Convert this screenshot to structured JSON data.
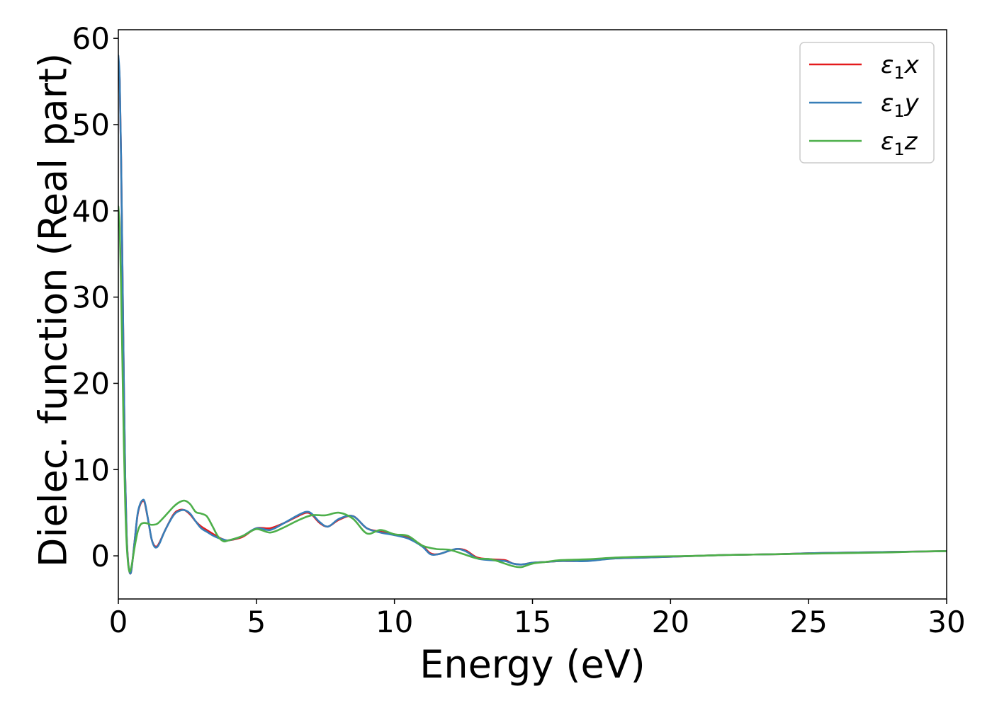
{
  "chart_data": {
    "type": "line",
    "title": "",
    "xlabel": "Energy (eV)",
    "ylabel": "Dielec. function (Real part)",
    "xlim": [
      0,
      30
    ],
    "ylim": [
      -5,
      61
    ],
    "xticks": [
      0,
      5,
      10,
      15,
      20,
      25,
      30
    ],
    "yticks": [
      0,
      10,
      20,
      30,
      40,
      50,
      60
    ],
    "grid": false,
    "legend": "top-right",
    "series": [
      {
        "name": "ε1x",
        "legend_base": "ε",
        "legend_sub": "1",
        "legend_tail": "x",
        "color": "#e41a1c",
        "x": [
          0,
          0.05,
          0.1,
          0.15,
          0.2,
          0.25,
          0.3,
          0.35,
          0.4,
          0.45,
          0.5,
          0.6,
          0.7,
          0.8,
          0.9,
          0.95,
          1.0,
          1.1,
          1.2,
          1.3,
          1.4,
          1.5,
          1.7,
          2.0,
          2.2,
          2.4,
          2.6,
          2.8,
          3.0,
          3.2,
          3.4,
          3.6,
          3.8,
          4.0,
          4.5,
          5.0,
          5.5,
          6.0,
          6.5,
          6.8,
          7.0,
          7.3,
          7.6,
          8.0,
          8.5,
          9.0,
          9.5,
          10.0,
          10.5,
          11.0,
          11.3,
          11.6,
          12.0,
          12.3,
          12.6,
          13.0,
          13.5,
          14.0,
          14.3,
          14.6,
          15.0,
          15.5,
          16.0,
          16.5,
          17.0,
          18.0,
          19.0,
          20.0,
          21.0,
          22.0,
          23.0,
          24.0,
          25.0,
          26.0,
          27.0,
          28.0,
          29.0,
          30.0
        ],
        "values": [
          57.5,
          55.0,
          46.0,
          33.0,
          20.0,
          9.0,
          2.5,
          -0.5,
          -1.8,
          -2.0,
          -1.0,
          2.0,
          4.8,
          6.0,
          6.4,
          6.2,
          5.5,
          3.8,
          2.0,
          1.2,
          1.1,
          1.6,
          3.0,
          4.8,
          5.3,
          5.3,
          4.8,
          4.0,
          3.4,
          3.0,
          2.6,
          2.2,
          1.9,
          1.8,
          2.2,
          3.2,
          3.2,
          3.8,
          4.6,
          5.0,
          4.8,
          3.8,
          3.4,
          4.2,
          4.6,
          3.2,
          2.8,
          2.5,
          2.1,
          1.2,
          0.3,
          0.2,
          0.6,
          0.8,
          0.6,
          -0.2,
          -0.4,
          -0.5,
          -0.9,
          -1.0,
          -0.8,
          -0.7,
          -0.6,
          -0.6,
          -0.5,
          -0.3,
          -0.2,
          -0.1,
          0.0,
          0.1,
          0.15,
          0.2,
          0.3,
          0.35,
          0.4,
          0.45,
          0.5,
          0.55
        ]
      },
      {
        "name": "ε1y",
        "legend_base": "ε",
        "legend_sub": "1",
        "legend_tail": "y",
        "color": "#377eb8",
        "x": [
          0,
          0.05,
          0.1,
          0.15,
          0.2,
          0.25,
          0.3,
          0.35,
          0.4,
          0.45,
          0.5,
          0.6,
          0.7,
          0.8,
          0.9,
          0.95,
          1.0,
          1.1,
          1.2,
          1.3,
          1.4,
          1.5,
          1.7,
          2.0,
          2.2,
          2.4,
          2.6,
          2.8,
          3.0,
          3.2,
          3.4,
          3.6,
          3.8,
          4.0,
          4.5,
          5.0,
          5.5,
          6.0,
          6.5,
          6.8,
          7.0,
          7.3,
          7.6,
          8.0,
          8.5,
          9.0,
          9.5,
          10.0,
          10.5,
          11.0,
          11.3,
          11.6,
          12.0,
          12.3,
          12.6,
          13.0,
          13.5,
          14.0,
          14.3,
          14.6,
          15.0,
          15.5,
          16.0,
          16.5,
          17.0,
          18.0,
          19.0,
          20.0,
          21.0,
          22.0,
          23.0,
          24.0,
          25.0,
          26.0,
          27.0,
          28.0,
          29.0,
          30.0
        ],
        "values": [
          58.0,
          55.2,
          46.0,
          33.0,
          20.0,
          9.0,
          2.4,
          -0.6,
          -1.8,
          -2.0,
          -1.0,
          2.0,
          4.9,
          6.1,
          6.5,
          6.3,
          5.6,
          3.8,
          2.0,
          1.1,
          1.0,
          1.5,
          3.0,
          4.7,
          5.2,
          5.3,
          4.9,
          4.0,
          3.2,
          2.8,
          2.4,
          2.1,
          1.9,
          1.8,
          2.3,
          3.2,
          3.0,
          3.8,
          4.7,
          5.1,
          4.9,
          3.9,
          3.4,
          4.3,
          4.6,
          3.2,
          2.7,
          2.4,
          2.0,
          1.1,
          0.2,
          0.2,
          0.6,
          0.8,
          0.5,
          -0.3,
          -0.5,
          -0.6,
          -0.9,
          -1.0,
          -0.8,
          -0.7,
          -0.6,
          -0.6,
          -0.6,
          -0.3,
          -0.2,
          -0.1,
          0.0,
          0.1,
          0.15,
          0.2,
          0.3,
          0.35,
          0.4,
          0.45,
          0.5,
          0.55
        ]
      },
      {
        "name": "ε1z",
        "legend_base": "ε",
        "legend_sub": "1",
        "legend_tail": "z",
        "color": "#4daf4a",
        "x": [
          0,
          0.05,
          0.1,
          0.15,
          0.2,
          0.25,
          0.3,
          0.35,
          0.4,
          0.45,
          0.5,
          0.6,
          0.7,
          0.8,
          0.9,
          1.0,
          1.1,
          1.2,
          1.4,
          1.6,
          1.8,
          2.0,
          2.2,
          2.4,
          2.6,
          2.8,
          3.0,
          3.2,
          3.4,
          3.6,
          3.8,
          4.0,
          4.5,
          5.0,
          5.5,
          6.0,
          6.5,
          7.0,
          7.5,
          8.0,
          8.5,
          9.0,
          9.5,
          10.0,
          10.5,
          11.0,
          11.5,
          12.0,
          12.5,
          13.0,
          13.5,
          14.0,
          14.3,
          14.6,
          15.0,
          15.5,
          16.0,
          17.0,
          18.0,
          19.0,
          20.0,
          21.0,
          22.0,
          23.0,
          24.0,
          25.0,
          26.0,
          27.0,
          28.0,
          29.0,
          30.0
        ],
        "values": [
          40.5,
          38.0,
          31.0,
          22.0,
          13.0,
          6.0,
          1.5,
          -0.8,
          -1.8,
          -1.6,
          -0.8,
          1.2,
          2.8,
          3.6,
          3.8,
          3.8,
          3.7,
          3.6,
          3.7,
          4.3,
          5.0,
          5.7,
          6.2,
          6.4,
          6.0,
          5.1,
          4.9,
          4.6,
          3.5,
          2.3,
          1.7,
          1.8,
          2.3,
          3.1,
          2.7,
          3.3,
          4.1,
          4.7,
          4.7,
          5.0,
          4.3,
          2.6,
          3.0,
          2.5,
          2.3,
          1.2,
          0.8,
          0.7,
          0.2,
          -0.3,
          -0.4,
          -0.9,
          -1.2,
          -1.3,
          -0.9,
          -0.7,
          -0.5,
          -0.4,
          -0.2,
          -0.1,
          -0.05,
          0.0,
          0.1,
          0.15,
          0.2,
          0.25,
          0.3,
          0.35,
          0.4,
          0.5,
          0.55
        ]
      }
    ]
  }
}
